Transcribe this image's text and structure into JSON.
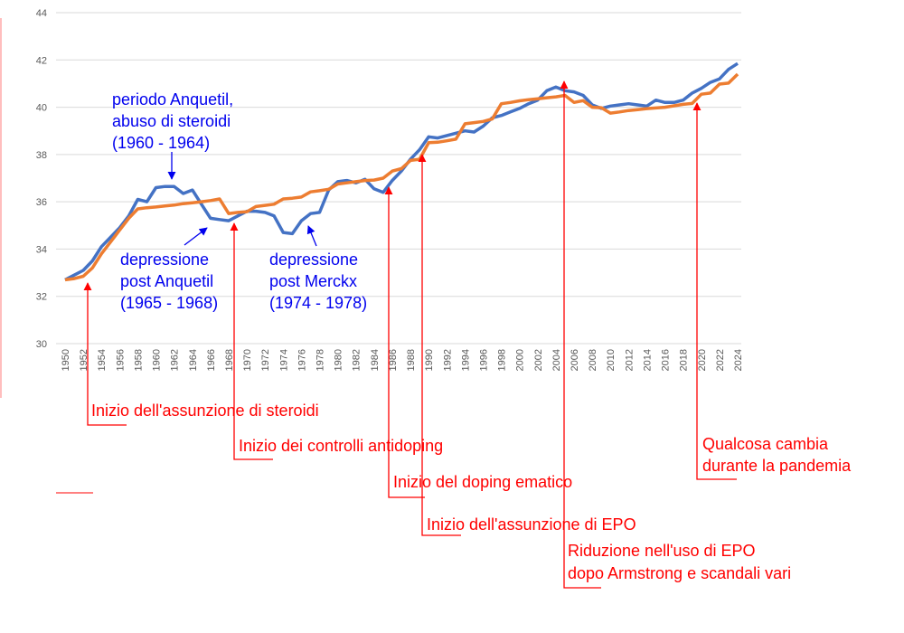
{
  "chart_data": {
    "type": "line",
    "title": "",
    "xlabel": "",
    "ylabel": "",
    "ylim": [
      30,
      44
    ],
    "yticks": [
      30,
      32,
      34,
      36,
      38,
      40,
      42,
      44
    ],
    "xlim": [
      1950,
      2024
    ],
    "grid": true,
    "legend": "none",
    "colors": {
      "series1": "#4472c4",
      "series2": "#ed7d31",
      "annotation_blue": "#0000ee",
      "annotation_red": "#ff0000"
    },
    "x": [
      1950,
      1951,
      1952,
      1953,
      1954,
      1955,
      1956,
      1957,
      1958,
      1959,
      1960,
      1961,
      1962,
      1963,
      1964,
      1965,
      1966,
      1967,
      1968,
      1969,
      1970,
      1971,
      1972,
      1973,
      1974,
      1975,
      1976,
      1977,
      1978,
      1979,
      1980,
      1981,
      1982,
      1983,
      1984,
      1985,
      1986,
      1987,
      1988,
      1989,
      1990,
      1991,
      1992,
      1993,
      1994,
      1995,
      1996,
      1997,
      1998,
      1999,
      2000,
      2001,
      2002,
      2003,
      2004,
      2005,
      2006,
      2007,
      2008,
      2009,
      2010,
      2011,
      2012,
      2013,
      2014,
      2015,
      2016,
      2017,
      2018,
      2019,
      2020,
      2021,
      2022,
      2023,
      2024
    ],
    "series": [
      {
        "values": [
          32.7,
          32.9,
          33.1,
          33.5,
          34.1,
          34.5,
          34.9,
          35.4,
          36.1,
          36.0,
          36.6,
          36.65,
          36.65,
          36.35,
          36.5,
          35.9,
          35.3,
          35.25,
          35.2,
          35.4,
          35.6,
          35.6,
          35.55,
          35.4,
          34.7,
          34.65,
          35.2,
          35.5,
          35.55,
          36.5,
          36.85,
          36.9,
          36.8,
          36.95,
          36.55,
          36.4,
          36.9,
          37.3,
          37.8,
          38.2,
          38.75,
          38.7,
          38.8,
          38.9,
          39.0,
          38.95,
          39.2,
          39.55,
          39.65,
          39.8,
          39.95,
          40.15,
          40.3,
          40.7,
          40.85,
          40.7,
          40.65,
          40.5,
          40.1,
          39.95,
          40.05,
          40.1,
          40.15,
          40.1,
          40.05,
          40.3,
          40.2,
          40.2,
          40.3,
          40.6,
          40.8,
          41.05,
          41.2,
          41.6,
          41.85
        ]
      },
      {
        "values": [
          32.7,
          32.75,
          32.85,
          33.2,
          33.8,
          34.3,
          34.8,
          35.3,
          35.7,
          35.75,
          35.78,
          35.82,
          35.86,
          35.92,
          35.96,
          36.0,
          36.05,
          36.12,
          35.5,
          35.55,
          35.58,
          35.8,
          35.85,
          35.9,
          36.12,
          36.15,
          36.2,
          36.42,
          36.47,
          36.53,
          36.75,
          36.8,
          36.85,
          36.9,
          36.92,
          37.0,
          37.3,
          37.4,
          37.75,
          37.8,
          38.5,
          38.52,
          38.58,
          38.65,
          39.3,
          39.35,
          39.4,
          39.5,
          40.15,
          40.2,
          40.27,
          40.32,
          40.36,
          40.4,
          40.44,
          40.5,
          40.2,
          40.28,
          40.0,
          39.98,
          39.75,
          39.8,
          39.86,
          39.9,
          39.94,
          39.97,
          40.0,
          40.06,
          40.12,
          40.16,
          40.55,
          40.6,
          40.98,
          41.02,
          41.4
        ]
      }
    ],
    "annotations": [
      {
        "lines": [
          "periodo Anquetil,",
          "abuso di steroidi",
          "(1960 - 1964)"
        ],
        "color": "blue",
        "year": 1962
      },
      {
        "lines": [
          "depressione",
          "post Anquetil",
          "(1965 - 1968)"
        ],
        "color": "blue",
        "year": 1966
      },
      {
        "lines": [
          "depressione",
          "post Merckx",
          "(1974 - 1978)"
        ],
        "color": "blue",
        "year": 1977
      },
      {
        "lines": [
          "Inizio dell'assunzione di steroidi"
        ],
        "color": "red",
        "year": 1952
      },
      {
        "lines": [
          "Inizio dei controlli antidoping"
        ],
        "color": "red",
        "year": 1968
      },
      {
        "lines": [
          "Inizio del doping ematico"
        ],
        "color": "red",
        "year": 1986
      },
      {
        "lines": [
          "Inizio dell'assunzione di EPO"
        ],
        "color": "red",
        "year": 1989
      },
      {
        "lines": [
          "Riduzione nell'uso di EPO",
          "dopo Armstrong e scandali vari"
        ],
        "color": "red",
        "year": 2005
      },
      {
        "lines": [
          "Qualcosa cambia",
          "durante la pandemia"
        ],
        "color": "red",
        "year": 2020
      }
    ]
  }
}
